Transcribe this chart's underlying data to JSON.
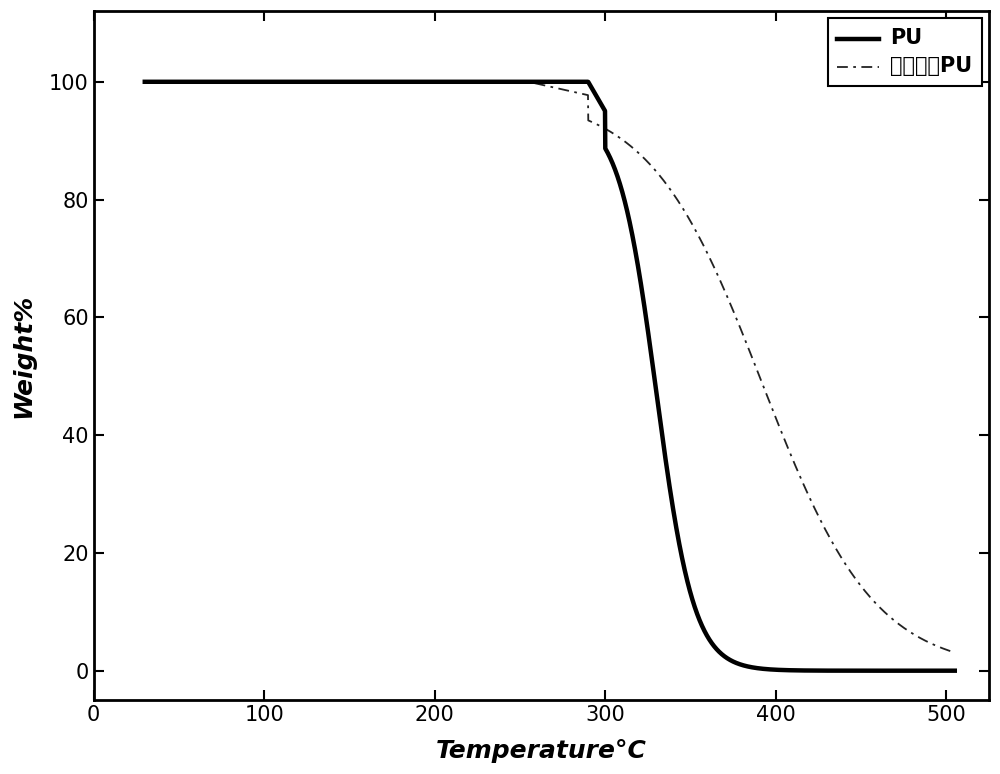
{
  "title": "",
  "xlabel": "Temperature°C",
  "ylabel": "Weight%",
  "xlim": [
    0,
    525
  ],
  "ylim": [
    -5,
    112
  ],
  "xticks": [
    0,
    100,
    200,
    300,
    400,
    500
  ],
  "yticks": [
    0,
    20,
    40,
    60,
    80,
    100
  ],
  "pu_color": "#000000",
  "mod_pu_color": "#222222",
  "background_color": "#ffffff",
  "legend_labels": [
    "PU",
    "改性后的PU"
  ],
  "figsize": [
    10.0,
    7.74
  ],
  "dpi": 100,
  "pu_linewidth": 3.2,
  "mod_linewidth": 1.3
}
